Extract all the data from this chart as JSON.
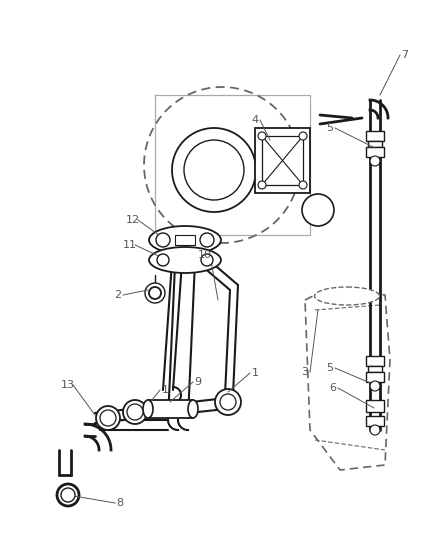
{
  "background_color": "#ffffff",
  "line_color": "#1a1a1a",
  "dashed_color": "#666666",
  "label_color": "#555555",
  "figsize": [
    4.38,
    5.33
  ],
  "dpi": 100
}
